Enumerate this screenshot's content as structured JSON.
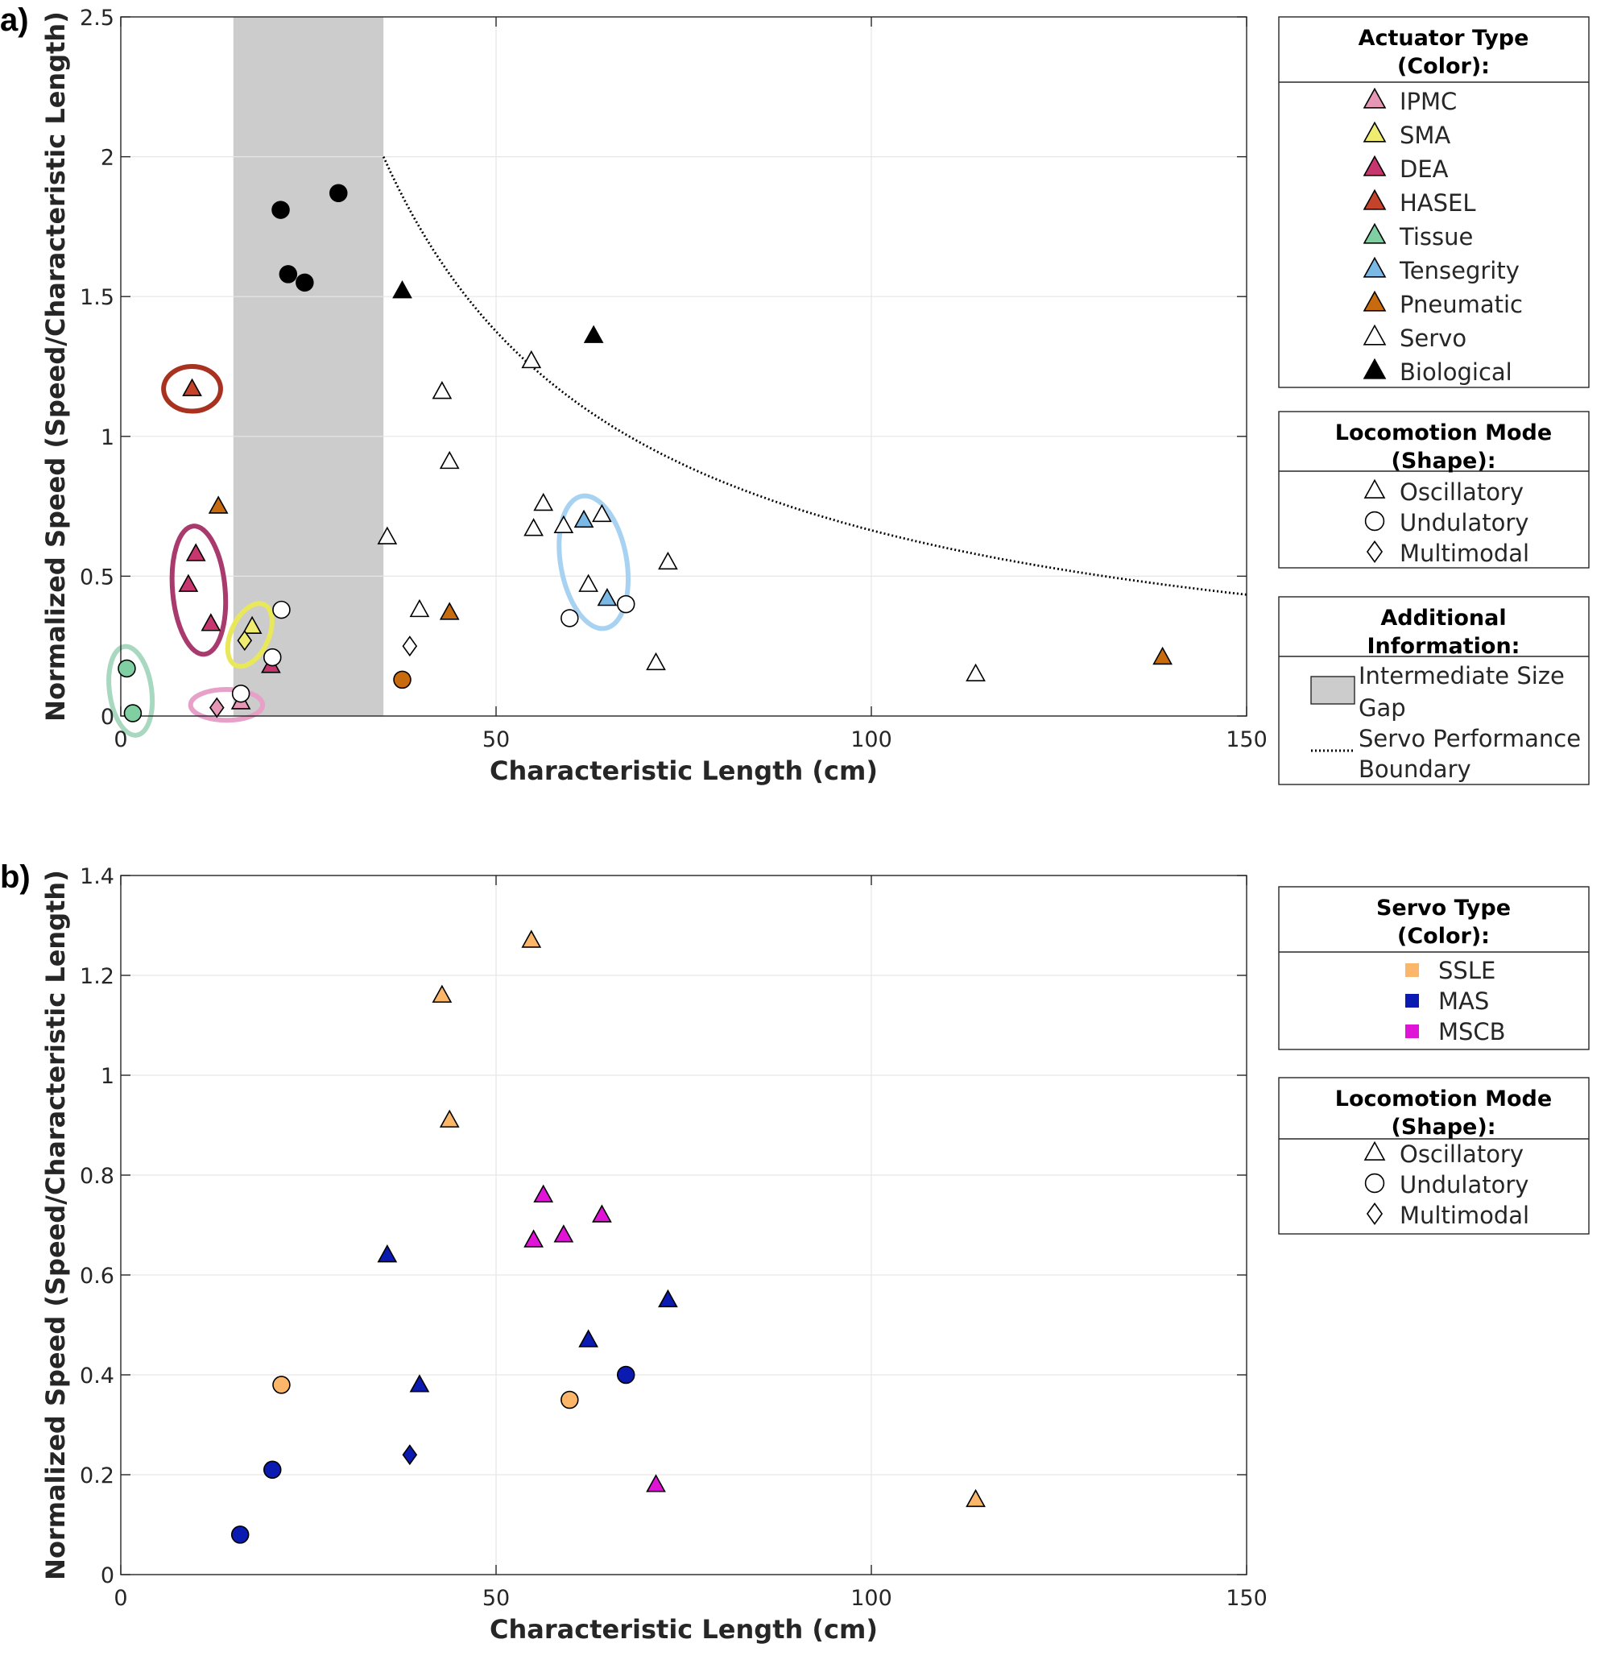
{
  "chart_data": [
    {
      "panel_label": "a)",
      "type": "scatter",
      "xlabel": "Characteristic Length (cm)",
      "ylabel": "Normalized Speed (Speed/Characteristic Length)",
      "xlim": [
        0,
        150
      ],
      "ylim": [
        0,
        2.5
      ],
      "xticks": [
        "0",
        "50",
        "100",
        "150"
      ],
      "yticks": [
        "0",
        "0.5",
        "1",
        "1.5",
        "2",
        "2.5"
      ],
      "grid": true,
      "gap_region": {
        "x_from": 15,
        "x_to": 35
      },
      "boundary_curve": {
        "x_start": 35,
        "x_end": 150,
        "y_at_start": 2.0,
        "formula": "y = 2.0 * (35 / x)^1.05"
      },
      "legend_actuator": {
        "title_lines": [
          "Actuator Type",
          "(Color):"
        ],
        "items": [
          {
            "label": "IPMC",
            "color": "#e597b5"
          },
          {
            "label": "SMA",
            "color": "#f0ec70"
          },
          {
            "label": "DEA",
            "color": "#c7366f"
          },
          {
            "label": "HASEL",
            "color": "#c4432a"
          },
          {
            "label": "Tissue",
            "color": "#7fcfa3"
          },
          {
            "label": "Tensegrity",
            "color": "#7ab8e6"
          },
          {
            "label": "Pneumatic",
            "color": "#c76b0e"
          },
          {
            "label": "Servo",
            "color": "#ffffff"
          },
          {
            "label": "Biological",
            "color": "#000000"
          }
        ]
      },
      "legend_mode": {
        "title_lines": [
          "Locomotion Mode",
          "(Shape):"
        ],
        "items": [
          {
            "label": "Oscillatory",
            "shape": "triangle"
          },
          {
            "label": "Undulatory",
            "shape": "circle"
          },
          {
            "label": "Multimodal",
            "shape": "diamond"
          }
        ]
      },
      "legend_info": {
        "title_lines": [
          "Additional",
          "Information:"
        ],
        "items": [
          {
            "label_lines": [
              "Intermediate Size",
              "Gap"
            ],
            "symbol": "gray-box"
          },
          {
            "label_lines": [
              "Servo Performance",
              "Boundary"
            ],
            "symbol": "dotted-line"
          }
        ]
      },
      "highlight_ellipses": [
        {
          "group": "HASEL",
          "cx": 9.5,
          "cy": 1.17,
          "rx": 3.8,
          "ry": 0.08,
          "angle": 0,
          "color": "#a8321f"
        },
        {
          "group": "DEA",
          "cx": 10.4,
          "cy": 0.45,
          "rx": 3.5,
          "ry": 0.23,
          "angle": -5,
          "color": "#a83a6e"
        },
        {
          "group": "SMA",
          "cx": 17.2,
          "cy": 0.29,
          "rx": 2.5,
          "ry": 0.12,
          "angle": 25,
          "color": "#e8e85a"
        },
        {
          "group": "IPMC",
          "cx": 14.1,
          "cy": 0.04,
          "rx": 4.8,
          "ry": 0.055,
          "angle": 0,
          "color": "#e7a0c8"
        },
        {
          "group": "Tissue",
          "cx": 1.3,
          "cy": 0.09,
          "rx": 2.8,
          "ry": 0.16,
          "angle": -8,
          "color": "#a8d8c0"
        },
        {
          "group": "Tensegrity",
          "cx": 63,
          "cy": 0.55,
          "rx": 4.4,
          "ry": 0.24,
          "angle": -10,
          "color": "#a8d2f2"
        }
      ],
      "points": [
        {
          "x": 9.5,
          "y": 1.17,
          "shape": "triangle",
          "color": "#c4432a"
        },
        {
          "x": 13,
          "y": 0.75,
          "shape": "triangle",
          "color": "#c76b0e"
        },
        {
          "x": 10,
          "y": 0.58,
          "shape": "triangle",
          "color": "#c7366f"
        },
        {
          "x": 9,
          "y": 0.47,
          "shape": "triangle",
          "color": "#c7366f"
        },
        {
          "x": 12,
          "y": 0.33,
          "shape": "triangle",
          "color": "#c7366f"
        },
        {
          "x": 20,
          "y": 0.18,
          "shape": "triangle",
          "color": "#c7366f"
        },
        {
          "x": 17.5,
          "y": 0.32,
          "shape": "triangle",
          "color": "#f0ec70"
        },
        {
          "x": 16.5,
          "y": 0.27,
          "shape": "diamond",
          "color": "#f0ec70"
        },
        {
          "x": 0.8,
          "y": 0.17,
          "shape": "circle",
          "color": "#7fcfa3"
        },
        {
          "x": 1.6,
          "y": 0.01,
          "shape": "circle",
          "color": "#7fcfa3"
        },
        {
          "x": 12.8,
          "y": 0.03,
          "shape": "diamond",
          "color": "#e597b5"
        },
        {
          "x": 16,
          "y": 0.05,
          "shape": "triangle",
          "color": "#e597b5"
        },
        {
          "x": 16,
          "y": 0.08,
          "shape": "circle",
          "color": "#ffffff"
        },
        {
          "x": 21.3,
          "y": 1.81,
          "shape": "circle",
          "color": "#000000"
        },
        {
          "x": 22.3,
          "y": 1.58,
          "shape": "circle",
          "color": "#000000"
        },
        {
          "x": 24.5,
          "y": 1.55,
          "shape": "circle",
          "color": "#000000"
        },
        {
          "x": 29,
          "y": 1.87,
          "shape": "circle",
          "color": "#000000"
        },
        {
          "x": 37.5,
          "y": 1.52,
          "shape": "triangle",
          "color": "#000000"
        },
        {
          "x": 63,
          "y": 1.36,
          "shape": "triangle",
          "color": "#000000"
        },
        {
          "x": 21.4,
          "y": 0.38,
          "shape": "circle",
          "color": "#ffffff"
        },
        {
          "x": 20.2,
          "y": 0.21,
          "shape": "circle",
          "color": "#ffffff"
        },
        {
          "x": 35.5,
          "y": 0.64,
          "shape": "triangle",
          "color": "#ffffff"
        },
        {
          "x": 39.8,
          "y": 0.38,
          "shape": "triangle",
          "color": "#ffffff"
        },
        {
          "x": 38.5,
          "y": 0.25,
          "shape": "diamond",
          "color": "#ffffff"
        },
        {
          "x": 37.5,
          "y": 0.13,
          "shape": "circle",
          "color": "#c76b0e"
        },
        {
          "x": 43.8,
          "y": 0.37,
          "shape": "triangle",
          "color": "#c76b0e"
        },
        {
          "x": 42.8,
          "y": 1.16,
          "shape": "triangle",
          "color": "#ffffff"
        },
        {
          "x": 43.8,
          "y": 0.91,
          "shape": "triangle",
          "color": "#ffffff"
        },
        {
          "x": 54.7,
          "y": 1.27,
          "shape": "triangle",
          "color": "#ffffff"
        },
        {
          "x": 56.3,
          "y": 0.76,
          "shape": "triangle",
          "color": "#ffffff"
        },
        {
          "x": 55,
          "y": 0.67,
          "shape": "triangle",
          "color": "#ffffff"
        },
        {
          "x": 59,
          "y": 0.68,
          "shape": "triangle",
          "color": "#ffffff"
        },
        {
          "x": 61.7,
          "y": 0.7,
          "shape": "triangle",
          "color": "#7ab8e6"
        },
        {
          "x": 64.1,
          "y": 0.72,
          "shape": "triangle",
          "color": "#ffffff"
        },
        {
          "x": 62.3,
          "y": 0.47,
          "shape": "triangle",
          "color": "#ffffff"
        },
        {
          "x": 64.8,
          "y": 0.42,
          "shape": "triangle",
          "color": "#7ab8e6"
        },
        {
          "x": 59.8,
          "y": 0.35,
          "shape": "circle",
          "color": "#ffffff"
        },
        {
          "x": 67.3,
          "y": 0.4,
          "shape": "circle",
          "color": "#ffffff"
        },
        {
          "x": 72.9,
          "y": 0.55,
          "shape": "triangle",
          "color": "#ffffff"
        },
        {
          "x": 71.3,
          "y": 0.19,
          "shape": "triangle",
          "color": "#ffffff"
        },
        {
          "x": 113.9,
          "y": 0.15,
          "shape": "triangle",
          "color": "#ffffff"
        },
        {
          "x": 138.8,
          "y": 0.21,
          "shape": "triangle",
          "color": "#c76b0e"
        }
      ]
    },
    {
      "panel_label": "b)",
      "type": "scatter",
      "xlabel": "Characteristic Length (cm)",
      "ylabel": "Normalized Speed (Speed/Characteristic Length)",
      "xlim": [
        0,
        150
      ],
      "ylim": [
        0,
        1.4
      ],
      "xticks": [
        "0",
        "50",
        "100",
        "150"
      ],
      "yticks": [
        "0",
        "0.2",
        "0.4",
        "0.6",
        "0.8",
        "1",
        "1.2",
        "1.4"
      ],
      "grid": true,
      "legend_servo": {
        "title_lines": [
          "Servo Type",
          "(Color):"
        ],
        "items": [
          {
            "label": "SSLE",
            "color": "#fbb66a"
          },
          {
            "label": "MAS",
            "color": "#0b1ab0"
          },
          {
            "label": "MSCB",
            "color": "#e014d6"
          }
        ]
      },
      "legend_mode": {
        "title_lines": [
          "Locomotion Mode",
          "(Shape):"
        ],
        "items": [
          {
            "label": "Oscillatory",
            "shape": "triangle"
          },
          {
            "label": "Undulatory",
            "shape": "circle"
          },
          {
            "label": "Multimodal",
            "shape": "diamond"
          }
        ]
      },
      "points": [
        {
          "x": 54.7,
          "y": 1.27,
          "shape": "triangle",
          "color": "#fbb66a"
        },
        {
          "x": 42.8,
          "y": 1.16,
          "shape": "triangle",
          "color": "#fbb66a"
        },
        {
          "x": 43.8,
          "y": 0.91,
          "shape": "triangle",
          "color": "#fbb66a"
        },
        {
          "x": 21.4,
          "y": 0.38,
          "shape": "circle",
          "color": "#fbb66a"
        },
        {
          "x": 59.8,
          "y": 0.35,
          "shape": "circle",
          "color": "#fbb66a"
        },
        {
          "x": 113.9,
          "y": 0.15,
          "shape": "triangle",
          "color": "#fbb66a"
        },
        {
          "x": 35.5,
          "y": 0.64,
          "shape": "triangle",
          "color": "#0b1ab0"
        },
        {
          "x": 39.8,
          "y": 0.38,
          "shape": "triangle",
          "color": "#0b1ab0"
        },
        {
          "x": 38.5,
          "y": 0.24,
          "shape": "diamond",
          "color": "#0b1ab0"
        },
        {
          "x": 20.2,
          "y": 0.21,
          "shape": "circle",
          "color": "#0b1ab0"
        },
        {
          "x": 15.9,
          "y": 0.08,
          "shape": "circle",
          "color": "#0b1ab0"
        },
        {
          "x": 62.3,
          "y": 0.47,
          "shape": "triangle",
          "color": "#0b1ab0"
        },
        {
          "x": 72.9,
          "y": 0.55,
          "shape": "triangle",
          "color": "#0b1ab0"
        },
        {
          "x": 67.3,
          "y": 0.4,
          "shape": "circle",
          "color": "#0b1ab0"
        },
        {
          "x": 56.3,
          "y": 0.76,
          "shape": "triangle",
          "color": "#e014d6"
        },
        {
          "x": 55,
          "y": 0.67,
          "shape": "triangle",
          "color": "#e014d6"
        },
        {
          "x": 59,
          "y": 0.68,
          "shape": "triangle",
          "color": "#e014d6"
        },
        {
          "x": 64.1,
          "y": 0.72,
          "shape": "triangle",
          "color": "#e014d6"
        },
        {
          "x": 71.3,
          "y": 0.18,
          "shape": "triangle",
          "color": "#e014d6"
        }
      ]
    }
  ]
}
